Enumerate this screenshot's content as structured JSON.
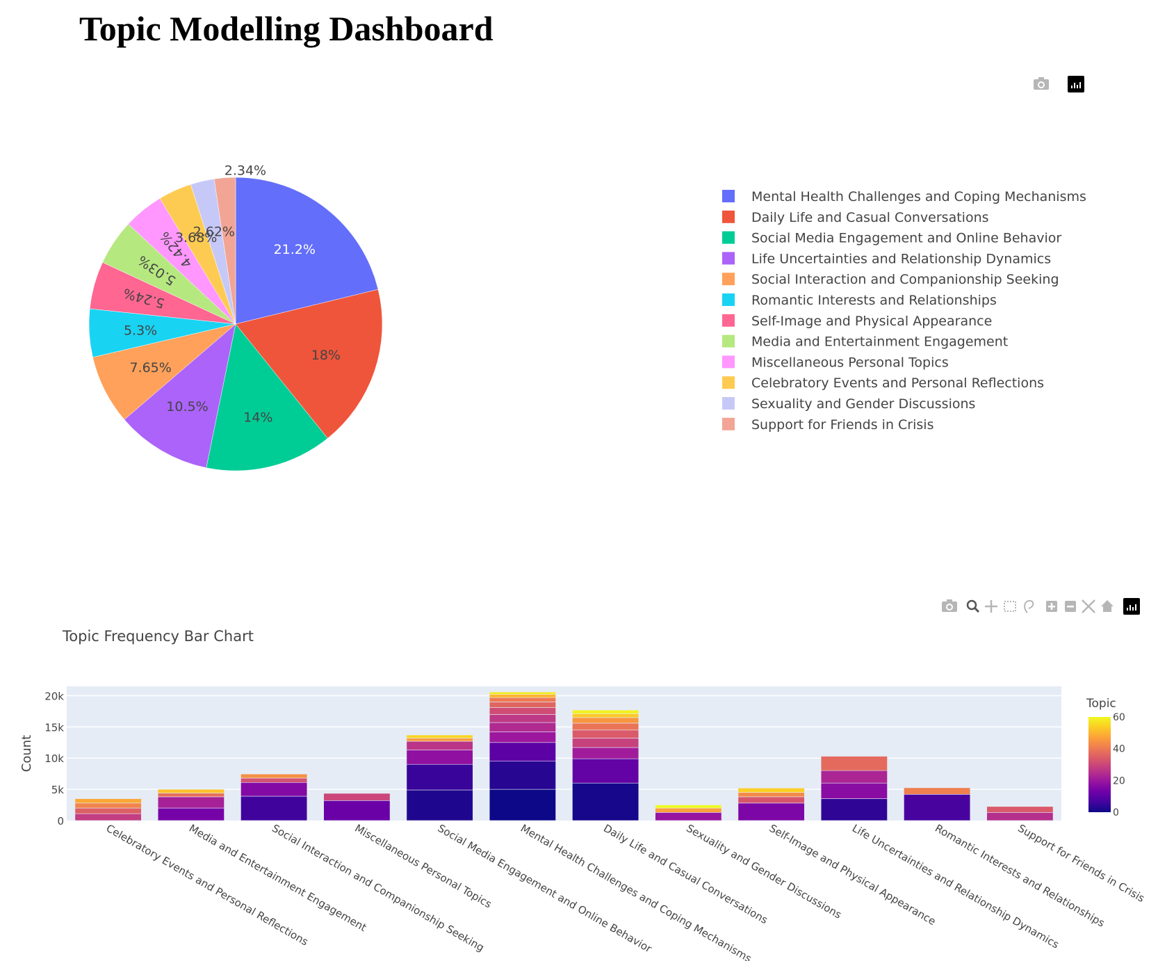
{
  "page": {
    "title": "Topic Modelling Dashboard"
  },
  "pie_modebar": [
    "camera-icon",
    "plotly-logo-icon"
  ],
  "bar_modebar": [
    "camera-icon",
    "zoom-icon",
    "pan-icon",
    "box-select-icon",
    "lasso-select-icon",
    "zoom-in-icon",
    "zoom-out-icon",
    "autoscale-icon",
    "reset-axes-icon",
    "plotly-logo-icon"
  ],
  "chart_data": [
    {
      "type": "pie",
      "title": "",
      "legend_position": "right",
      "slices": [
        {
          "label": "Mental Health Challenges and Coping Mechanisms",
          "percent": 21.2,
          "text": "21.2%",
          "color": "#636efa"
        },
        {
          "label": "Daily Life and Casual Conversations",
          "percent": 18.0,
          "text": "18%",
          "color": "#EF553B"
        },
        {
          "label": "Social Media Engagement and Online Behavior",
          "percent": 14.0,
          "text": "14%",
          "color": "#00cc96"
        },
        {
          "label": "Life Uncertainties and Relationship Dynamics",
          "percent": 10.5,
          "text": "10.5%",
          "color": "#ab63fa"
        },
        {
          "label": "Social Interaction and Companionship Seeking",
          "percent": 7.65,
          "text": "7.65%",
          "color": "#FFA15A"
        },
        {
          "label": "Romantic Interests and Relationships",
          "percent": 5.3,
          "text": "5.3%",
          "color": "#19d3f3"
        },
        {
          "label": "Self-Image and Physical Appearance",
          "percent": 5.24,
          "text": "5.24%",
          "color": "#FF6692"
        },
        {
          "label": "Media and Entertainment Engagement",
          "percent": 5.03,
          "text": "5.03%",
          "color": "#B6E880"
        },
        {
          "label": "Miscellaneous Personal Topics",
          "percent": 4.42,
          "text": "4.42%",
          "color": "#FF97FF"
        },
        {
          "label": "Celebratory Events and Personal Reflections",
          "percent": 3.68,
          "text": "3.68%",
          "color": "#FECB52"
        },
        {
          "label": "Sexuality and Gender Discussions",
          "percent": 2.62,
          "text": "2.62%",
          "color": "#c6c9f7"
        },
        {
          "label": "Support for Friends in Crisis",
          "percent": 2.34,
          "text": "2.34%",
          "color": "#f2a595"
        }
      ]
    },
    {
      "type": "bar",
      "stacked": true,
      "title": "Topic Frequency Bar Chart",
      "xlabel": "",
      "ylabel": "Count",
      "ylim": [
        0,
        21500
      ],
      "yticks": [
        0,
        5000,
        10000,
        15000,
        20000
      ],
      "ytick_labels": [
        "0",
        "5k",
        "10k",
        "15k",
        "20k"
      ],
      "grid": true,
      "colorbar": {
        "title": "Topic",
        "range": [
          0,
          60
        ],
        "ticks": [
          0,
          20,
          40,
          60
        ],
        "tick_labels": [
          "0",
          "20",
          "40",
          "60"
        ],
        "colorscale": [
          "#0d0887",
          "#46039f",
          "#7201a8",
          "#9c179e",
          "#bd3786",
          "#d8576b",
          "#ed7953",
          "#fb9f3a",
          "#fdca26",
          "#f0f921"
        ]
      },
      "categories": [
        "Celebratory Events and Personal Reflections",
        "Media and Entertainment Engagement",
        "Social Interaction and Companionship Seeking",
        "Miscellaneous Personal Topics",
        "Social Media Engagement and Online Behavior",
        "Mental Health Challenges and Coping Mechanisms",
        "Daily Life and Casual Conversations",
        "Sexuality and Gender Discussions",
        "Self-Image and Physical Appearance",
        "Life Uncertainties and Relationship Dynamics",
        "Romantic Interests and Relationships",
        "Support for Friends in Crisis"
      ],
      "stacks": [
        {
          "category": "Celebratory Events and Personal Reflections",
          "segments": [
            {
              "topic": 28,
              "value": 1100
            },
            {
              "topic": 35,
              "value": 900
            },
            {
              "topic": 42,
              "value": 800
            },
            {
              "topic": 48,
              "value": 700
            }
          ]
        },
        {
          "category": "Media and Entertainment Engagement",
          "segments": [
            {
              "topic": 14,
              "value": 2000
            },
            {
              "topic": 22,
              "value": 1800
            },
            {
              "topic": 38,
              "value": 600
            },
            {
              "topic": 52,
              "value": 600
            }
          ]
        },
        {
          "category": "Social Interaction and Companionship Seeking",
          "segments": [
            {
              "topic": 6,
              "value": 3900
            },
            {
              "topic": 16,
              "value": 2200
            },
            {
              "topic": 32,
              "value": 700
            },
            {
              "topic": 44,
              "value": 650
            }
          ]
        },
        {
          "category": "Miscellaneous Personal Topics",
          "segments": [
            {
              "topic": 12,
              "value": 3200
            },
            {
              "topic": 30,
              "value": 1150
            }
          ]
        },
        {
          "category": "Social Media Engagement and Online Behavior",
          "segments": [
            {
              "topic": 2,
              "value": 4900
            },
            {
              "topic": 5,
              "value": 4100
            },
            {
              "topic": 18,
              "value": 2300
            },
            {
              "topic": 26,
              "value": 1400
            },
            {
              "topic": 46,
              "value": 500
            },
            {
              "topic": 55,
              "value": 500
            }
          ]
        },
        {
          "category": "Mental Health Challenges and Coping Mechanisms",
          "segments": [
            {
              "topic": 0,
              "value": 5000
            },
            {
              "topic": 3,
              "value": 4500
            },
            {
              "topic": 10,
              "value": 3000
            },
            {
              "topic": 20,
              "value": 1700
            },
            {
              "topic": 24,
              "value": 1500
            },
            {
              "topic": 27,
              "value": 1300
            },
            {
              "topic": 31,
              "value": 1100
            },
            {
              "topic": 36,
              "value": 900
            },
            {
              "topic": 40,
              "value": 700
            },
            {
              "topic": 50,
              "value": 500
            },
            {
              "topic": 58,
              "value": 400
            }
          ]
        },
        {
          "category": "Daily Life and Casual Conversations",
          "segments": [
            {
              "topic": 1,
              "value": 6000
            },
            {
              "topic": 11,
              "value": 3900
            },
            {
              "topic": 21,
              "value": 1800
            },
            {
              "topic": 29,
              "value": 1500
            },
            {
              "topic": 34,
              "value": 1300
            },
            {
              "topic": 39,
              "value": 1100
            },
            {
              "topic": 45,
              "value": 900
            },
            {
              "topic": 53,
              "value": 600
            },
            {
              "topic": 59,
              "value": 600
            }
          ]
        },
        {
          "category": "Sexuality and Gender Discussions",
          "segments": [
            {
              "topic": 19,
              "value": 1300
            },
            {
              "topic": 47,
              "value": 700
            },
            {
              "topic": 60,
              "value": 500
            }
          ]
        },
        {
          "category": "Self-Image and Physical Appearance",
          "segments": [
            {
              "topic": 15,
              "value": 2800
            },
            {
              "topic": 33,
              "value": 1000
            },
            {
              "topic": 43,
              "value": 700
            },
            {
              "topic": 54,
              "value": 700
            }
          ]
        },
        {
          "category": "Life Uncertainties and Relationship Dynamics",
          "segments": [
            {
              "topic": 4,
              "value": 3500
            },
            {
              "topic": 17,
              "value": 2500
            },
            {
              "topic": 23,
              "value": 2000
            },
            {
              "topic": 37,
              "value": 2300
            }
          ]
        },
        {
          "category": "Romantic Interests and Relationships",
          "segments": [
            {
              "topic": 7,
              "value": 4200
            },
            {
              "topic": 41,
              "value": 1050
            }
          ]
        },
        {
          "category": "Support for Friends in Crisis",
          "segments": [
            {
              "topic": 25,
              "value": 1300
            },
            {
              "topic": 34,
              "value": 950
            }
          ]
        }
      ]
    }
  ]
}
